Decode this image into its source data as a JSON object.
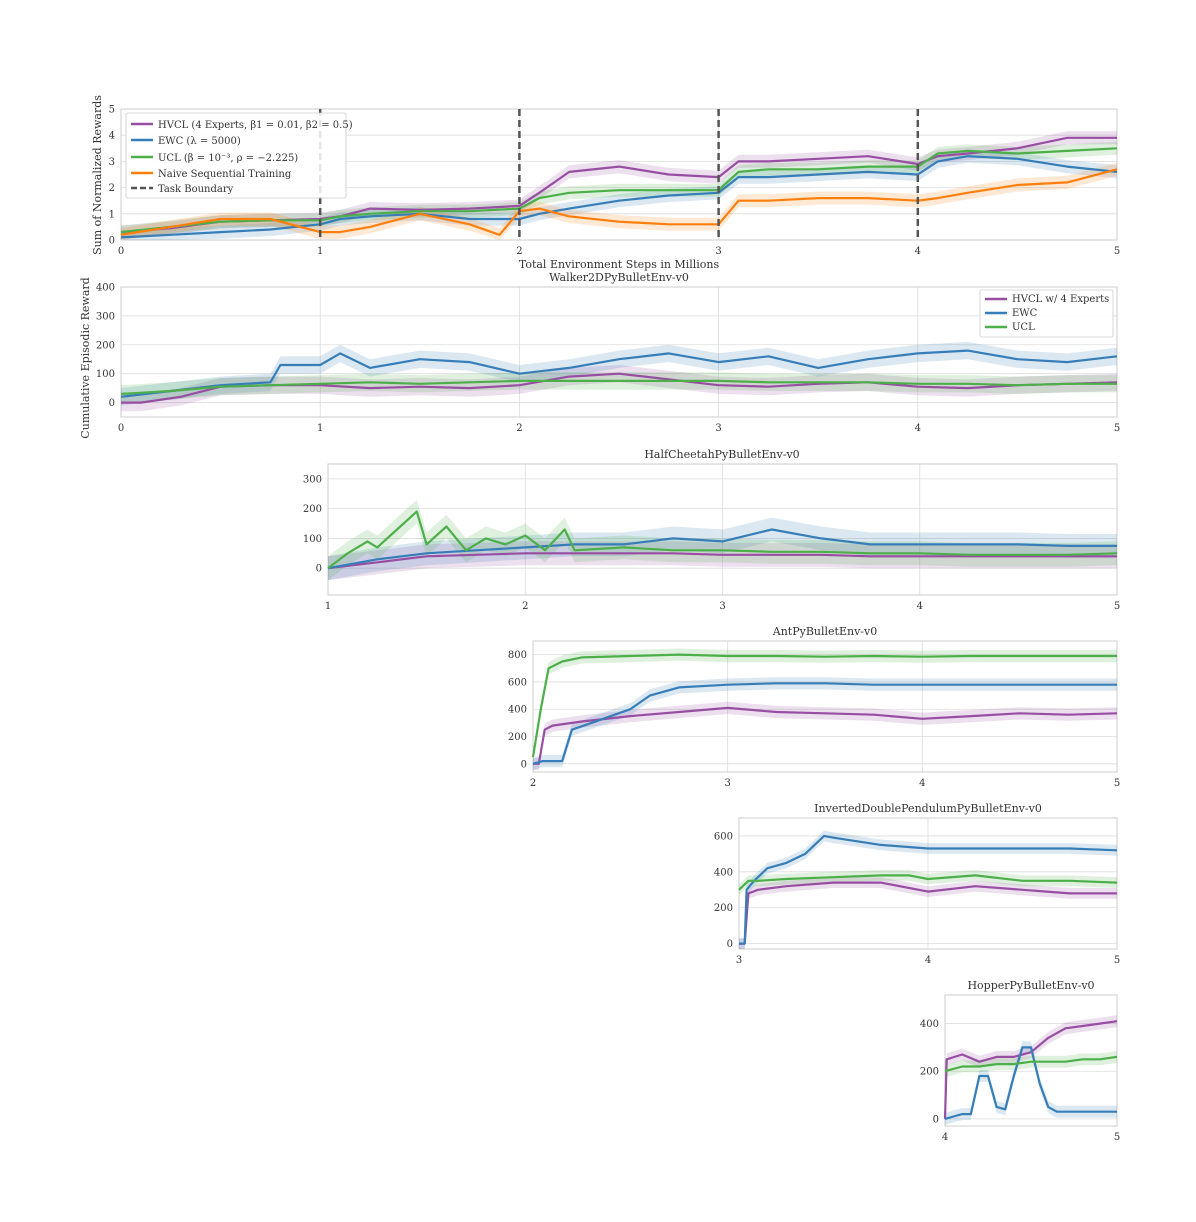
{
  "colors": {
    "hvcl": "#984ea3",
    "ewc": "#377eb8",
    "ucl": "#4daf4a",
    "naive": "#ff7f0e",
    "boundary": "#555555"
  },
  "chart_data": [
    {
      "id": "summary",
      "type": "line",
      "title": "",
      "xlabel": "Total Environment Steps in Millions",
      "ylabel": "Sum of Normalized Rewards",
      "xlim": [
        0,
        5
      ],
      "ylim": [
        0,
        5
      ],
      "xticks": [
        "0",
        "1",
        "2",
        "3",
        "4",
        "5"
      ],
      "yticks": [
        "0",
        "1",
        "2",
        "3",
        "4",
        "5"
      ],
      "task_boundaries": [
        1,
        2,
        3,
        4
      ],
      "legend": [
        "HVCL (4 Experts, β1 = 0.01, β2 = 0.5)",
        "EWC (λ = 5000)",
        "UCL (β = 10⁻³, ρ = −2.225)",
        "Naive Sequential Training",
        "Task Boundary"
      ],
      "series": [
        {
          "name": "HVCL",
          "color": "#984ea3",
          "x": [
            0,
            0.25,
            0.5,
            0.75,
            1,
            1.1,
            1.25,
            1.5,
            1.75,
            2,
            2.1,
            2.25,
            2.5,
            2.75,
            3,
            3.1,
            3.25,
            3.5,
            3.75,
            4,
            4.1,
            4.25,
            4.5,
            4.75,
            5
          ],
          "y": [
            0.3,
            0.45,
            0.7,
            0.75,
            0.8,
            0.9,
            1.2,
            1.15,
            1.2,
            1.3,
            1.8,
            2.6,
            2.8,
            2.5,
            2.4,
            3.0,
            3.0,
            3.1,
            3.2,
            2.9,
            3.2,
            3.3,
            3.5,
            3.9,
            3.9
          ]
        },
        {
          "name": "EWC",
          "color": "#377eb8",
          "x": [
            0,
            0.25,
            0.5,
            0.75,
            1,
            1.1,
            1.25,
            1.5,
            1.75,
            2,
            2.1,
            2.25,
            2.5,
            2.75,
            3,
            3.1,
            3.25,
            3.5,
            3.75,
            4,
            4.1,
            4.25,
            4.5,
            4.75,
            5
          ],
          "y": [
            0.1,
            0.2,
            0.3,
            0.4,
            0.6,
            0.8,
            0.9,
            1.0,
            0.8,
            0.8,
            1.0,
            1.2,
            1.5,
            1.7,
            1.8,
            2.4,
            2.4,
            2.5,
            2.6,
            2.5,
            3.0,
            3.2,
            3.1,
            2.8,
            2.6
          ]
        },
        {
          "name": "UCL",
          "color": "#4daf4a",
          "x": [
            0,
            0.25,
            0.5,
            0.75,
            1,
            1.1,
            1.25,
            1.5,
            1.75,
            2,
            2.1,
            2.25,
            2.5,
            2.75,
            3,
            3.1,
            3.25,
            3.5,
            3.75,
            4,
            4.1,
            4.25,
            4.5,
            4.75,
            5
          ],
          "y": [
            0.3,
            0.5,
            0.7,
            0.75,
            0.75,
            0.9,
            1.0,
            1.1,
            1.1,
            1.2,
            1.6,
            1.8,
            1.9,
            1.9,
            1.9,
            2.6,
            2.7,
            2.7,
            2.8,
            2.8,
            3.3,
            3.4,
            3.3,
            3.4,
            3.5
          ]
        },
        {
          "name": "Naive",
          "color": "#ff7f0e",
          "x": [
            0,
            0.25,
            0.5,
            0.75,
            1,
            1.1,
            1.25,
            1.5,
            1.75,
            1.9,
            2,
            2.1,
            2.25,
            2.5,
            2.75,
            3,
            3.1,
            3.25,
            3.5,
            3.75,
            4,
            4.1,
            4.25,
            4.5,
            4.75,
            5
          ],
          "y": [
            0.2,
            0.5,
            0.8,
            0.8,
            0.3,
            0.3,
            0.5,
            1.0,
            0.6,
            0.2,
            1.1,
            1.2,
            0.9,
            0.7,
            0.6,
            0.6,
            1.5,
            1.5,
            1.6,
            1.6,
            1.5,
            1.6,
            1.8,
            2.1,
            2.2,
            2.7
          ]
        }
      ]
    },
    {
      "id": "walker",
      "type": "line",
      "title": "Walker2DPyBulletEnv-v0",
      "ylabel": "Cumulative Episodic Reward",
      "xlim": [
        0,
        5
      ],
      "ylim": [
        -50,
        400
      ],
      "xticks": [
        "0",
        "1",
        "2",
        "3",
        "4",
        "5"
      ],
      "yticks": [
        "0",
        "100",
        "200",
        "300",
        "400"
      ],
      "legend": [
        "HVCL w/ 4 Experts",
        "EWC",
        "UCL"
      ],
      "series": [
        {
          "name": "HVCL w/ 4 Experts",
          "color": "#984ea3",
          "x": [
            0,
            0.1,
            0.3,
            0.5,
            0.75,
            1,
            1.25,
            1.5,
            1.75,
            2,
            2.25,
            2.5,
            2.75,
            3,
            3.25,
            3.5,
            3.75,
            4,
            4.25,
            4.5,
            4.75,
            5
          ],
          "y": [
            0,
            0,
            20,
            55,
            60,
            60,
            50,
            55,
            50,
            60,
            90,
            100,
            80,
            60,
            55,
            65,
            70,
            55,
            50,
            60,
            65,
            70
          ]
        },
        {
          "name": "EWC",
          "color": "#377eb8",
          "x": [
            0,
            0.25,
            0.5,
            0.75,
            0.8,
            1,
            1.1,
            1.25,
            1.5,
            1.75,
            2,
            2.25,
            2.5,
            2.75,
            3,
            3.25,
            3.5,
            3.75,
            4,
            4.25,
            4.5,
            4.75,
            5
          ],
          "y": [
            20,
            40,
            60,
            70,
            130,
            130,
            170,
            120,
            150,
            140,
            100,
            120,
            150,
            170,
            140,
            160,
            120,
            150,
            170,
            180,
            150,
            140,
            160
          ]
        },
        {
          "name": "UCL",
          "color": "#4daf4a",
          "x": [
            0,
            0.25,
            0.5,
            0.75,
            1,
            1.25,
            1.5,
            1.75,
            2,
            2.25,
            2.5,
            2.75,
            3,
            3.25,
            3.5,
            3.75,
            4,
            4.25,
            4.5,
            4.75,
            5
          ],
          "y": [
            30,
            40,
            55,
            60,
            65,
            70,
            65,
            70,
            75,
            75,
            75,
            75,
            75,
            70,
            70,
            70,
            65,
            65,
            60,
            65,
            65
          ]
        }
      ]
    },
    {
      "id": "halfcheetah",
      "type": "line",
      "title": "HalfCheetahPyBulletEnv-v0",
      "xlim": [
        1,
        5
      ],
      "ylim": [
        -90,
        350
      ],
      "xticks": [
        "1",
        "2",
        "3",
        "4",
        "5"
      ],
      "yticks": [
        "0",
        "100",
        "200",
        "300"
      ],
      "series": [
        {
          "name": "HVCL w/ 4 Experts",
          "color": "#984ea3",
          "x": [
            1,
            1.25,
            1.5,
            1.75,
            2,
            2.25,
            2.5,
            2.75,
            3,
            3.25,
            3.5,
            3.75,
            4,
            4.25,
            4.5,
            4.75,
            5
          ],
          "y": [
            0,
            20,
            40,
            45,
            50,
            50,
            50,
            50,
            45,
            45,
            45,
            40,
            40,
            40,
            40,
            40,
            40
          ]
        },
        {
          "name": "EWC",
          "color": "#377eb8",
          "x": [
            1,
            1.25,
            1.5,
            1.75,
            2,
            2.25,
            2.5,
            2.75,
            3,
            3.25,
            3.5,
            3.75,
            4,
            4.25,
            4.5,
            4.75,
            5
          ],
          "y": [
            0,
            30,
            50,
            60,
            70,
            80,
            80,
            100,
            90,
            130,
            100,
            80,
            80,
            80,
            80,
            75,
            75
          ]
        },
        {
          "name": "UCL",
          "color": "#4daf4a",
          "x": [
            1,
            1.1,
            1.2,
            1.25,
            1.35,
            1.45,
            1.5,
            1.6,
            1.7,
            1.8,
            1.9,
            2,
            2.1,
            2.2,
            2.25,
            2.5,
            2.75,
            3,
            3.25,
            3.5,
            3.75,
            4,
            4.25,
            4.5,
            4.75,
            5
          ],
          "y": [
            0,
            50,
            90,
            70,
            130,
            190,
            80,
            140,
            60,
            100,
            80,
            110,
            60,
            130,
            60,
            70,
            60,
            60,
            55,
            55,
            50,
            50,
            45,
            45,
            45,
            50
          ]
        }
      ]
    },
    {
      "id": "ant",
      "type": "line",
      "title": "AntPyBulletEnv-v0",
      "xlim": [
        2,
        5
      ],
      "ylim": [
        -60,
        900
      ],
      "xticks": [
        "2",
        "3",
        "4",
        "5"
      ],
      "yticks": [
        "0",
        "200",
        "400",
        "600",
        "800"
      ],
      "series": [
        {
          "name": "HVCL w/ 4 Experts",
          "color": "#984ea3",
          "x": [
            2,
            2.03,
            2.06,
            2.1,
            2.25,
            2.5,
            2.75,
            3,
            3.25,
            3.5,
            3.75,
            4,
            4.25,
            4.5,
            4.75,
            5
          ],
          "y": [
            0,
            0,
            250,
            280,
            310,
            350,
            380,
            410,
            380,
            370,
            360,
            330,
            350,
            370,
            360,
            370
          ]
        },
        {
          "name": "EWC",
          "color": "#377eb8",
          "x": [
            2,
            2.05,
            2.15,
            2.2,
            2.3,
            2.4,
            2.5,
            2.6,
            2.75,
            3,
            3.25,
            3.5,
            3.75,
            4,
            4.25,
            4.5,
            4.75,
            5
          ],
          "y": [
            0,
            20,
            20,
            250,
            300,
            350,
            400,
            500,
            560,
            580,
            590,
            590,
            580,
            580,
            580,
            580,
            580,
            580
          ]
        },
        {
          "name": "UCL",
          "color": "#4daf4a",
          "x": [
            2,
            2.04,
            2.08,
            2.15,
            2.25,
            2.5,
            2.75,
            3,
            3.25,
            3.5,
            3.75,
            4,
            4.25,
            4.5,
            4.75,
            5
          ],
          "y": [
            50,
            400,
            700,
            750,
            780,
            790,
            800,
            790,
            790,
            785,
            790,
            785,
            790,
            790,
            790,
            790
          ]
        }
      ]
    },
    {
      "id": "idp",
      "type": "line",
      "title": "InvertedDoublePendulumPyBulletEnv-v0",
      "xlim": [
        3,
        5
      ],
      "ylim": [
        -30,
        700
      ],
      "xticks": [
        "3",
        "4",
        "5"
      ],
      "yticks": [
        "0",
        "200",
        "400",
        "600"
      ],
      "series": [
        {
          "name": "HVCL w/ 4 Experts",
          "color": "#984ea3",
          "x": [
            3,
            3.03,
            3.05,
            3.1,
            3.25,
            3.5,
            3.75,
            4,
            4.25,
            4.5,
            4.75,
            5
          ],
          "y": [
            0,
            0,
            280,
            300,
            320,
            340,
            340,
            290,
            320,
            300,
            280,
            280
          ]
        },
        {
          "name": "EWC",
          "color": "#377eb8",
          "x": [
            3,
            3.03,
            3.04,
            3.08,
            3.15,
            3.25,
            3.35,
            3.45,
            3.5,
            3.75,
            4,
            4.25,
            4.5,
            4.75,
            5
          ],
          "y": [
            0,
            0,
            300,
            350,
            420,
            450,
            500,
            600,
            590,
            550,
            530,
            530,
            530,
            530,
            520
          ]
        },
        {
          "name": "UCL",
          "color": "#4daf4a",
          "x": [
            3,
            3.05,
            3.1,
            3.25,
            3.5,
            3.75,
            3.9,
            4,
            4.25,
            4.5,
            4.75,
            5
          ],
          "y": [
            300,
            350,
            350,
            360,
            370,
            380,
            380,
            360,
            380,
            350,
            350,
            340
          ]
        }
      ]
    },
    {
      "id": "hopper",
      "type": "line",
      "title": "HopperPyBulletEnv-v0",
      "xlim": [
        4,
        5
      ],
      "ylim": [
        -30,
        520
      ],
      "xticks": [
        "4",
        "5"
      ],
      "yticks": [
        "0",
        "200",
        "400"
      ],
      "series": [
        {
          "name": "HVCL w/ 4 Experts",
          "color": "#984ea3",
          "x": [
            4,
            4.01,
            4.1,
            4.2,
            4.3,
            4.4,
            4.5,
            4.6,
            4.7,
            4.8,
            4.9,
            5
          ],
          "y": [
            0,
            250,
            270,
            240,
            260,
            260,
            280,
            340,
            380,
            390,
            400,
            410
          ]
        },
        {
          "name": "EWC",
          "color": "#377eb8",
          "x": [
            4,
            4.05,
            4.1,
            4.15,
            4.2,
            4.25,
            4.3,
            4.35,
            4.4,
            4.45,
            4.5,
            4.55,
            4.6,
            4.65,
            4.7,
            4.8,
            4.9,
            5
          ],
          "y": [
            0,
            10,
            20,
            20,
            180,
            180,
            50,
            40,
            180,
            300,
            300,
            150,
            50,
            30,
            30,
            30,
            30,
            30
          ]
        },
        {
          "name": "UCL",
          "color": "#4daf4a",
          "x": [
            4,
            4.1,
            4.2,
            4.3,
            4.4,
            4.5,
            4.6,
            4.7,
            4.8,
            4.9,
            5
          ],
          "y": [
            200,
            220,
            220,
            230,
            230,
            240,
            240,
            240,
            250,
            250,
            260
          ]
        }
      ]
    }
  ]
}
